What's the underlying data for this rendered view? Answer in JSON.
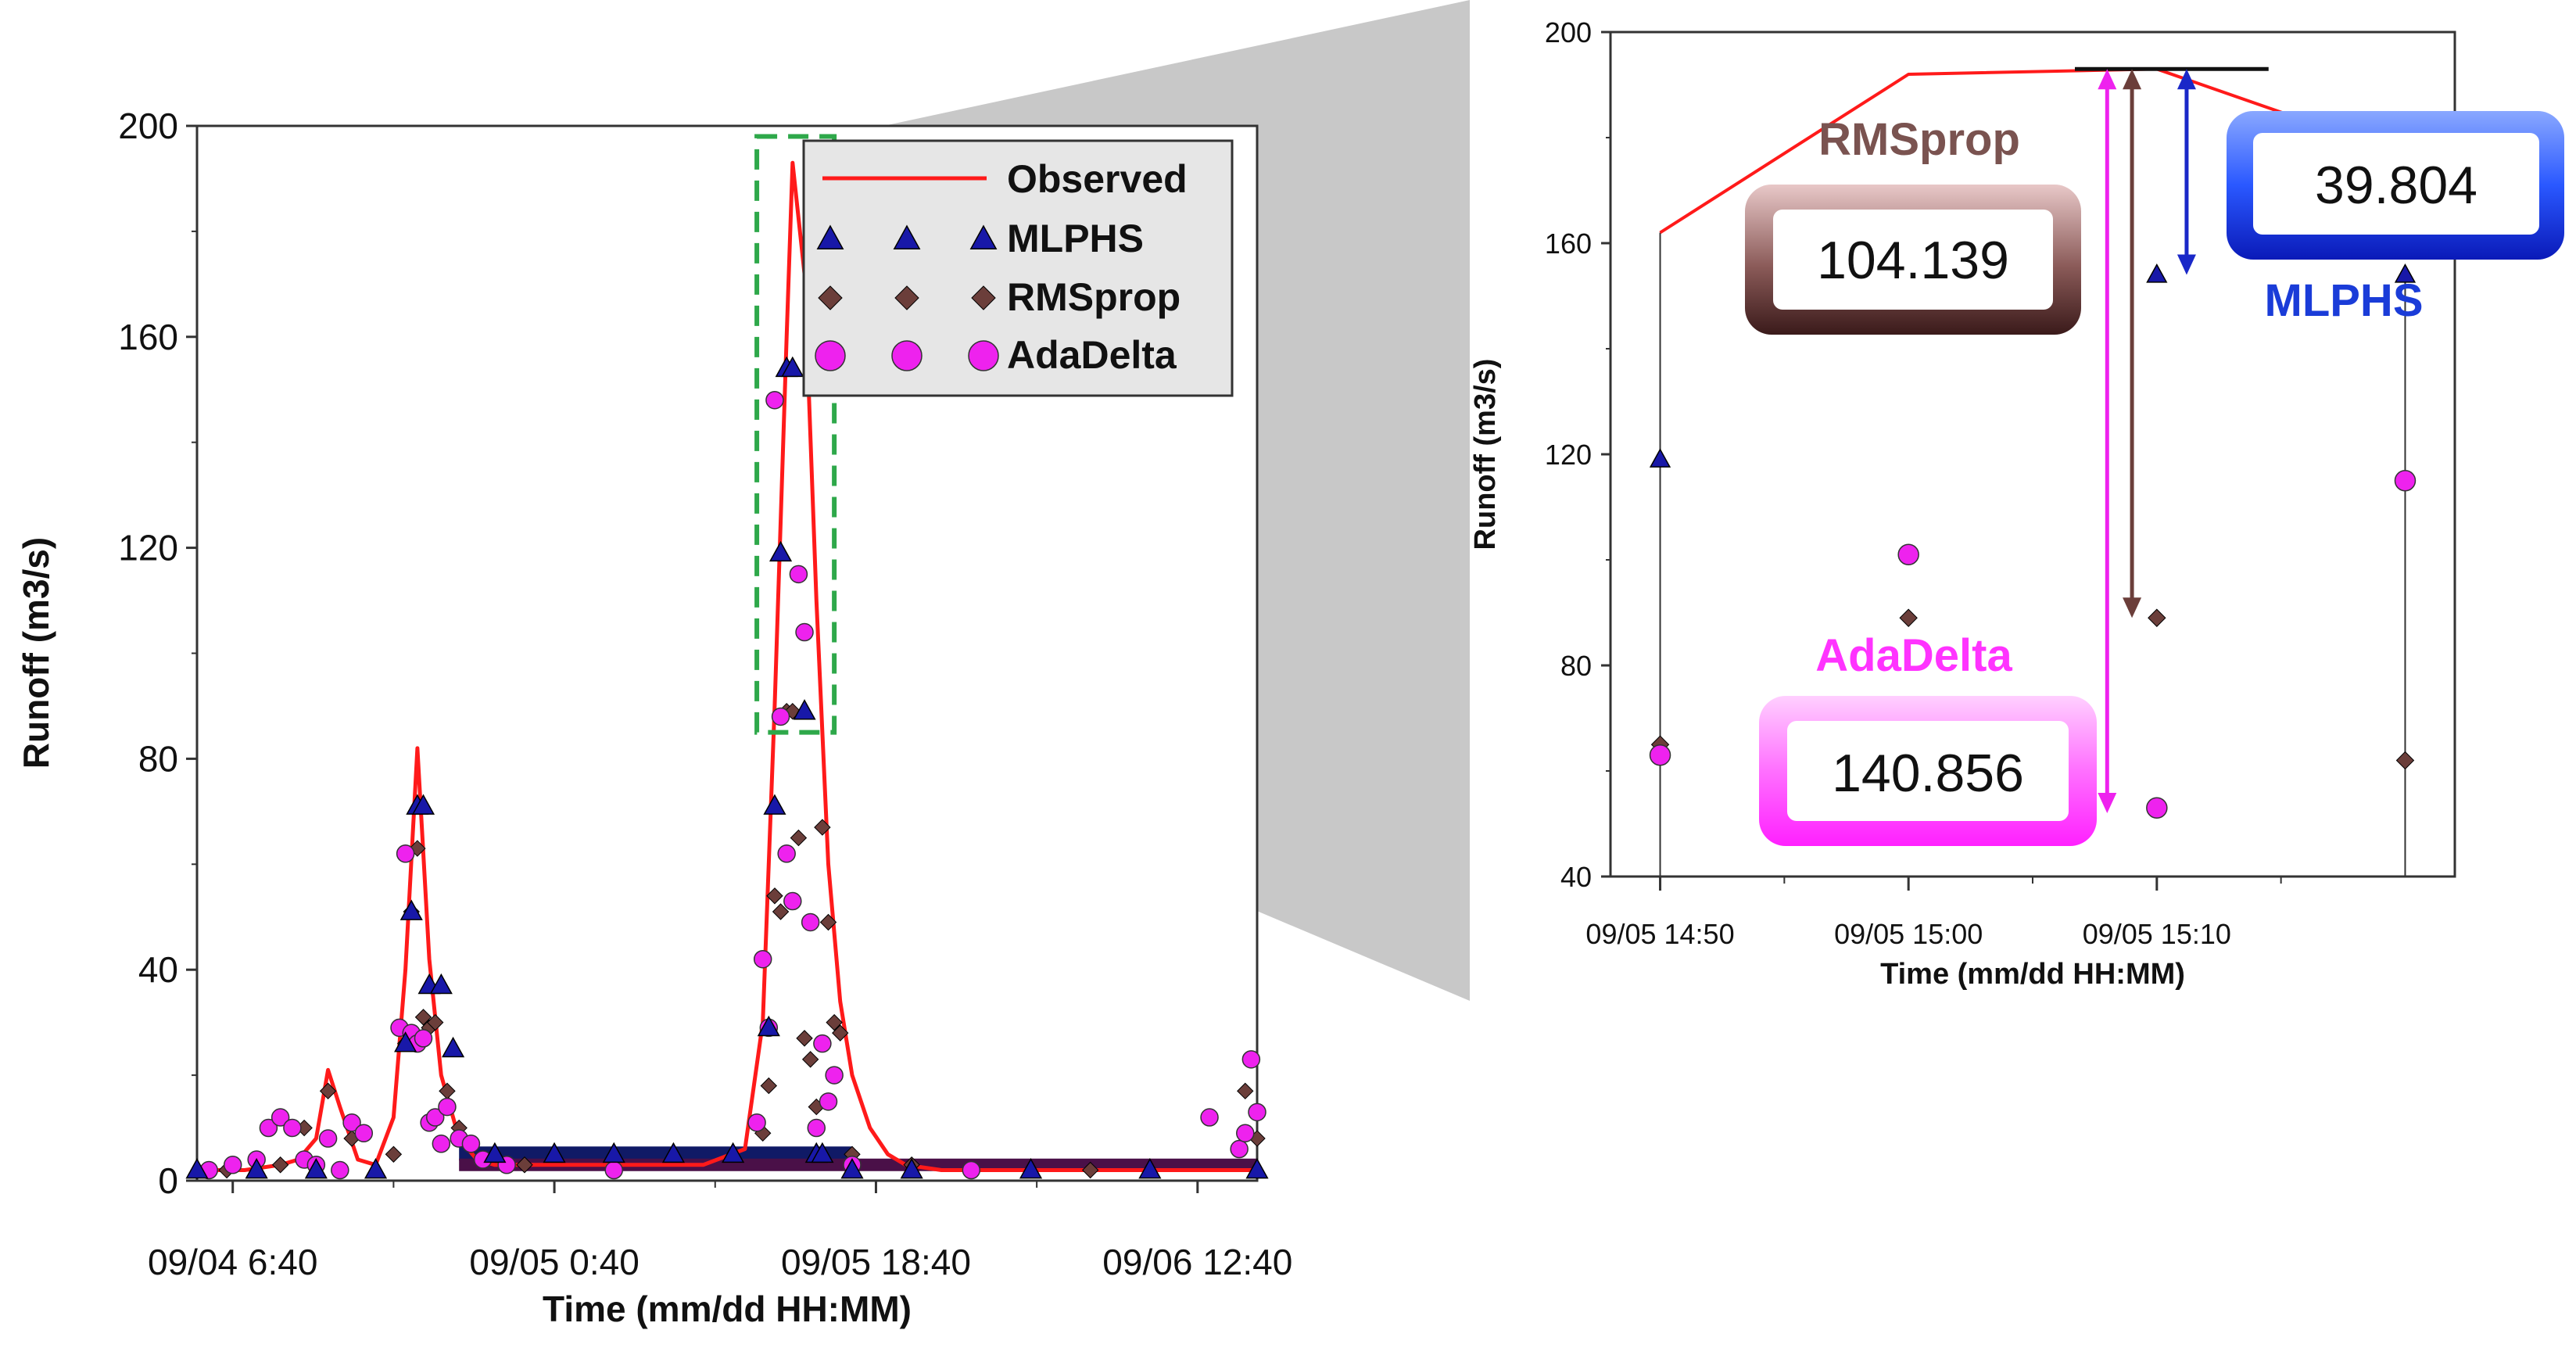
{
  "chart_data": [
    {
      "type": "line",
      "panel": "full-period",
      "title": "",
      "xlabel": "Time (mm/dd HH:MM)",
      "ylabel": "Runoff (m3/s)",
      "ylim": [
        0,
        200
      ],
      "yticks": [
        0,
        40,
        80,
        120,
        160,
        200
      ],
      "xlim": [
        0,
        178
      ],
      "xtick_positions": [
        6,
        60,
        114,
        168
      ],
      "xtick_labels": [
        "09/04 6:40",
        "09/05 0:40",
        "09/05 18:40",
        "09/06 12:40"
      ],
      "legend": [
        "Observed",
        "MLPHS",
        "RMSprop",
        "AdaDelta"
      ],
      "legend_position": "top-right",
      "observed": {
        "name": "Observed",
        "x": [
          0,
          8,
          14,
          17,
          20,
          22,
          24,
          27,
          30,
          33,
          35,
          37,
          39,
          41,
          44,
          47,
          50,
          60,
          85,
          92,
          95,
          97,
          99,
          100,
          102,
          104,
          106,
          108,
          110,
          113,
          116,
          119,
          125,
          178
        ],
        "y": [
          2,
          2,
          3,
          4,
          8,
          21,
          14,
          4,
          3,
          12,
          40,
          82,
          42,
          20,
          8,
          4,
          3,
          3,
          3,
          6,
          30,
          90,
          160,
          193,
          172,
          110,
          60,
          34,
          20,
          10,
          5,
          3,
          2,
          2
        ]
      },
      "mlphs": {
        "name": "MLPHS",
        "x": [
          0,
          10,
          20,
          30,
          35,
          36,
          37,
          38,
          39,
          41,
          43,
          50,
          60,
          70,
          80,
          90,
          96,
          97,
          98,
          99,
          100,
          102,
          104,
          105,
          110,
          120,
          140,
          160,
          178
        ],
        "y": [
          2,
          2,
          2,
          2,
          26,
          51,
          71,
          71,
          37,
          37,
          25,
          5,
          5,
          5,
          5,
          5,
          29,
          71,
          119,
          154,
          154,
          89,
          5,
          5,
          2,
          2,
          2,
          2,
          2
        ]
      },
      "rmsprop": {
        "name": "RMSprop",
        "x": [
          5,
          14,
          18,
          22,
          26,
          33,
          35,
          36,
          37,
          38,
          39,
          40,
          42,
          44,
          55,
          95,
          96,
          97,
          98,
          99,
          100,
          101,
          102,
          103,
          104,
          105,
          106,
          107,
          108,
          110,
          120,
          150,
          176,
          178
        ],
        "y": [
          2,
          3,
          10,
          17,
          8,
          5,
          26,
          51,
          63,
          31,
          29,
          30,
          17,
          10,
          3,
          9,
          18,
          54,
          51,
          89,
          89,
          65,
          27,
          23,
          14,
          67,
          49,
          30,
          28,
          5,
          3,
          2,
          17,
          8
        ],
        "values": [
          2,
          3,
          10,
          17,
          8,
          5,
          26,
          51,
          63,
          31,
          29,
          30,
          17,
          10,
          3,
          9,
          18,
          54,
          51,
          89,
          89,
          65,
          27,
          23,
          14,
          67,
          49,
          30,
          28,
          5,
          3,
          2,
          17,
          8
        ]
      },
      "adadelta": {
        "name": "AdaDelta",
        "x": [
          2,
          6,
          10,
          12,
          14,
          16,
          18,
          20,
          22,
          24,
          26,
          28,
          34,
          35,
          36,
          37,
          38,
          39,
          40,
          41,
          42,
          44,
          46,
          48,
          52,
          70,
          94,
          95,
          96,
          97,
          98,
          99,
          100,
          101,
          102,
          103,
          104,
          105,
          106,
          107,
          110,
          130,
          170,
          175,
          176,
          177,
          178
        ],
        "y": [
          2,
          3,
          4,
          10,
          12,
          10,
          4,
          3,
          8,
          2,
          11,
          9,
          29,
          62,
          28,
          26,
          27,
          11,
          12,
          7,
          14,
          8,
          7,
          4,
          3,
          2,
          11,
          42,
          29,
          148,
          88,
          62,
          53,
          115,
          104,
          49,
          10,
          26,
          15,
          20,
          3,
          2,
          12,
          6,
          9,
          23,
          13
        ]
      },
      "mlphs_band": {
        "x_start": 44,
        "x_end": 110,
        "value": 5
      },
      "rmsprop_band": {
        "x_start": 44,
        "x_end": 178,
        "value": 3
      },
      "zoom_box": {
        "x": [
          94,
          107
        ],
        "y": [
          85,
          198
        ]
      }
    },
    {
      "type": "line",
      "panel": "zoom",
      "title": "",
      "xlabel": "Time (mm/dd HH:MM)",
      "ylabel": "Runoff (m3/s)",
      "ylim": [
        40,
        200
      ],
      "yticks": [
        40,
        80,
        120,
        160,
        200
      ],
      "xlim": [
        -0.2,
        3.2
      ],
      "xtick_positions": [
        0,
        1,
        2
      ],
      "xtick_labels": [
        "09/05 14:50",
        "09/05 15:00",
        "09/05 15:10"
      ],
      "observed": {
        "name": "Observed",
        "x": [
          0,
          1,
          2,
          2.55,
          3
        ],
        "y": [
          162,
          192,
          193,
          184,
          178
        ]
      },
      "mlphs": {
        "name": "MLPHS",
        "x": [
          0,
          2,
          3
        ],
        "y": [
          119,
          154,
          154
        ]
      },
      "rmsprop": {
        "name": "RMSprop",
        "x": [
          0,
          1,
          2,
          3
        ],
        "y": [
          65,
          89,
          89,
          62
        ]
      },
      "adadelta": {
        "name": "AdaDelta",
        "x": [
          0,
          1,
          2,
          3
        ],
        "y": [
          63,
          101,
          53,
          115
        ]
      },
      "peak_line": {
        "x": [
          1.67,
          2.45
        ],
        "y": 193
      },
      "error_arrows": [
        {
          "name": "AdaDelta",
          "x": 1.8,
          "from": 193,
          "to": 52,
          "color": "#ee22ee"
        },
        {
          "name": "RMSprop",
          "x": 1.9,
          "from": 193,
          "to": 89,
          "color": "#6b3e3a"
        },
        {
          "name": "MLPHS",
          "x": 2.12,
          "from": 193,
          "to": 154,
          "color": "#1a28c8"
        }
      ]
    }
  ],
  "callouts": {
    "rmsprop": {
      "label": "RMSprop",
      "value": "104.139",
      "color": "#7a5350"
    },
    "mlphs": {
      "label": "MLPHS",
      "value": "39.804",
      "color": "#1a3cd8"
    },
    "adadelta": {
      "label": "AdaDelta",
      "value": "140.856",
      "color": "#ff33ff"
    }
  },
  "colors": {
    "observed": "#ff1a1a",
    "mlphs_fill": "#1818a8",
    "rmsprop_fill": "#6b3e3a",
    "adadelta_fill": "#ee22ee",
    "band_navy": "#101a66",
    "band_purple": "#4a1048",
    "zoom_box": "#2ea84a",
    "grey_zoom": "#c8c8c8",
    "legend_bg": "#e6e6e6"
  }
}
